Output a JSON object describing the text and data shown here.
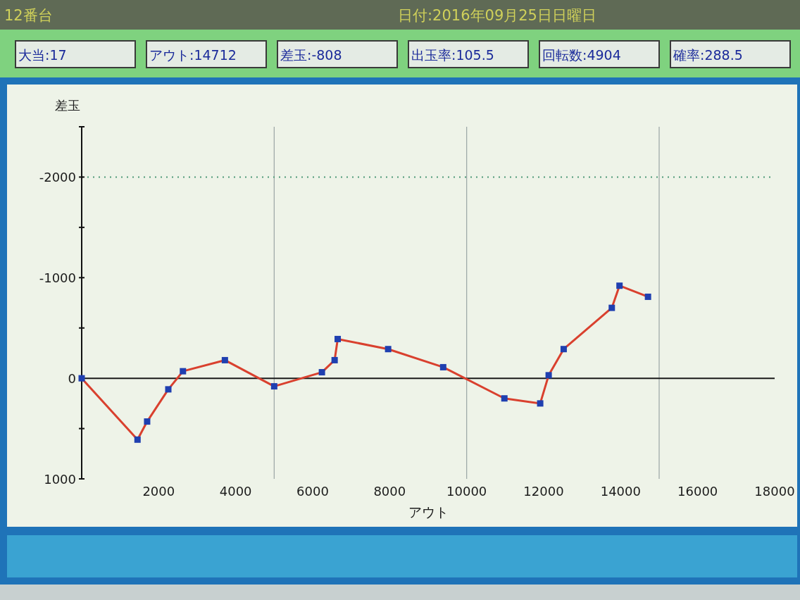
{
  "chart_data": {
    "type": "line",
    "title": "12番台",
    "subtitle": "日付:2016年09月25日日曜日",
    "annotations": [
      "大当:17",
      "アウト:14712",
      "差玉:-808",
      "出玉率:105.5",
      "回転数:4904",
      "確率:288.5"
    ],
    "xlabel": "アウト",
    "ylabel": "差玉",
    "series": [
      {
        "color": "#d9402e",
        "colors": [
          "#1f3fb0",
          "#1f3fb0",
          "#1f3fb0",
          "#1f3fb0",
          "#1f3fb0",
          "#1f3fb0",
          "#1f3fb0",
          "#1f3fb0",
          "#1f3fb0",
          "#1f3fb0",
          "#1f3fb0",
          "#1f3fb0",
          "#1f3fb0",
          "#1f3fb0",
          "#1f3fb0",
          "#1f3fb0",
          "#1f3fb0",
          "#1f3fb0",
          "#1f3fb0"
        ],
        "x": [
          0,
          1450,
          1700,
          2250,
          2630,
          3720,
          5000,
          6240,
          6570,
          6650,
          7960,
          9390,
          10980,
          11910,
          12130,
          12520,
          13770,
          13970,
          14710
        ],
        "values": [
          0,
          610,
          430,
          110,
          -70,
          -180,
          80,
          -60,
          -180,
          -390,
          -290,
          -110,
          200,
          250,
          -30,
          -290,
          -700,
          -920,
          -810
        ]
      }
    ],
    "marker": "square",
    "line_style": "solid",
    "xlim": [
      0,
      18000
    ],
    "xticks": [
      2000,
      4000,
      6000,
      8000,
      10000,
      12000,
      14000,
      16000,
      18000
    ],
    "ylim": [
      1000,
      -2500
    ],
    "yticks": [
      {
        "value": -2500,
        "label": null
      },
      -2000,
      {
        "value": -1500,
        "label": null
      },
      -1000,
      {
        "value": -500,
        "label": null
      },
      0,
      {
        "value": 500,
        "label": null
      },
      1000
    ],
    "ref_lines": [
      {
        "axis": "x",
        "value": 5000,
        "color": "#9aa4a4"
      },
      {
        "axis": "x",
        "value": 10000,
        "color": "#9aa4a4"
      },
      {
        "axis": "x",
        "value": 15000,
        "color": "#9aa4a4"
      },
      {
        "axis": "y",
        "value": -2000,
        "color": "#4f9a78",
        "line_style": "dotted"
      },
      {
        "axis": "y",
        "value": 0,
        "color": "#1a1a1a"
      }
    ]
  }
}
